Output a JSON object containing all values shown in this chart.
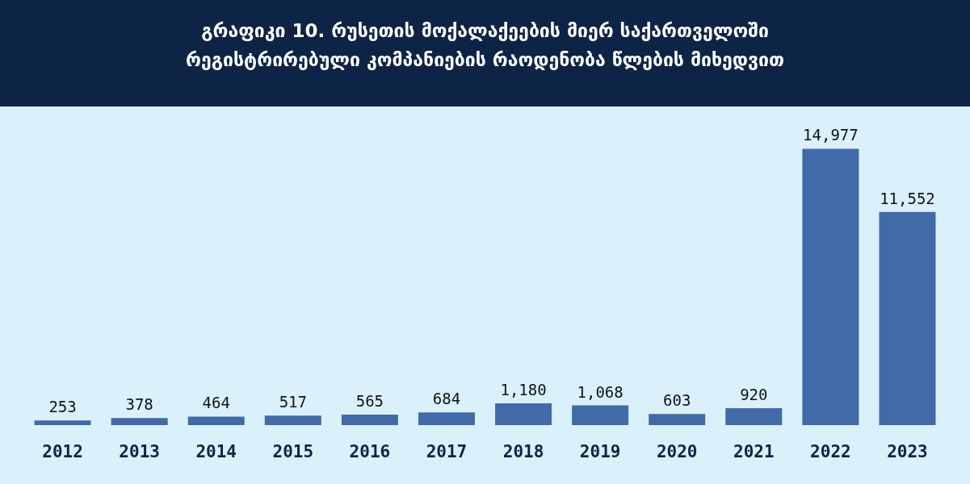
{
  "chart_data": {
    "type": "bar",
    "title": "გრაფიკი 10. რუსეთის მოქალაქეების მიერ საქართველოში\nრეგისტრირებული კომპანიების რაოდენობა წლების მიხედვით",
    "categories": [
      "2012",
      "2013",
      "2014",
      "2015",
      "2016",
      "2017",
      "2018",
      "2019",
      "2020",
      "2021",
      "2022",
      "2023"
    ],
    "values": [
      253,
      378,
      464,
      517,
      565,
      684,
      1180,
      1068,
      603,
      920,
      14977,
      11552
    ],
    "value_labels": [
      "253",
      "378",
      "464",
      "517",
      "565",
      "684",
      "1,180",
      "1,068",
      "603",
      "920",
      "14,977",
      "11,552"
    ],
    "color": "#416aa8"
  }
}
